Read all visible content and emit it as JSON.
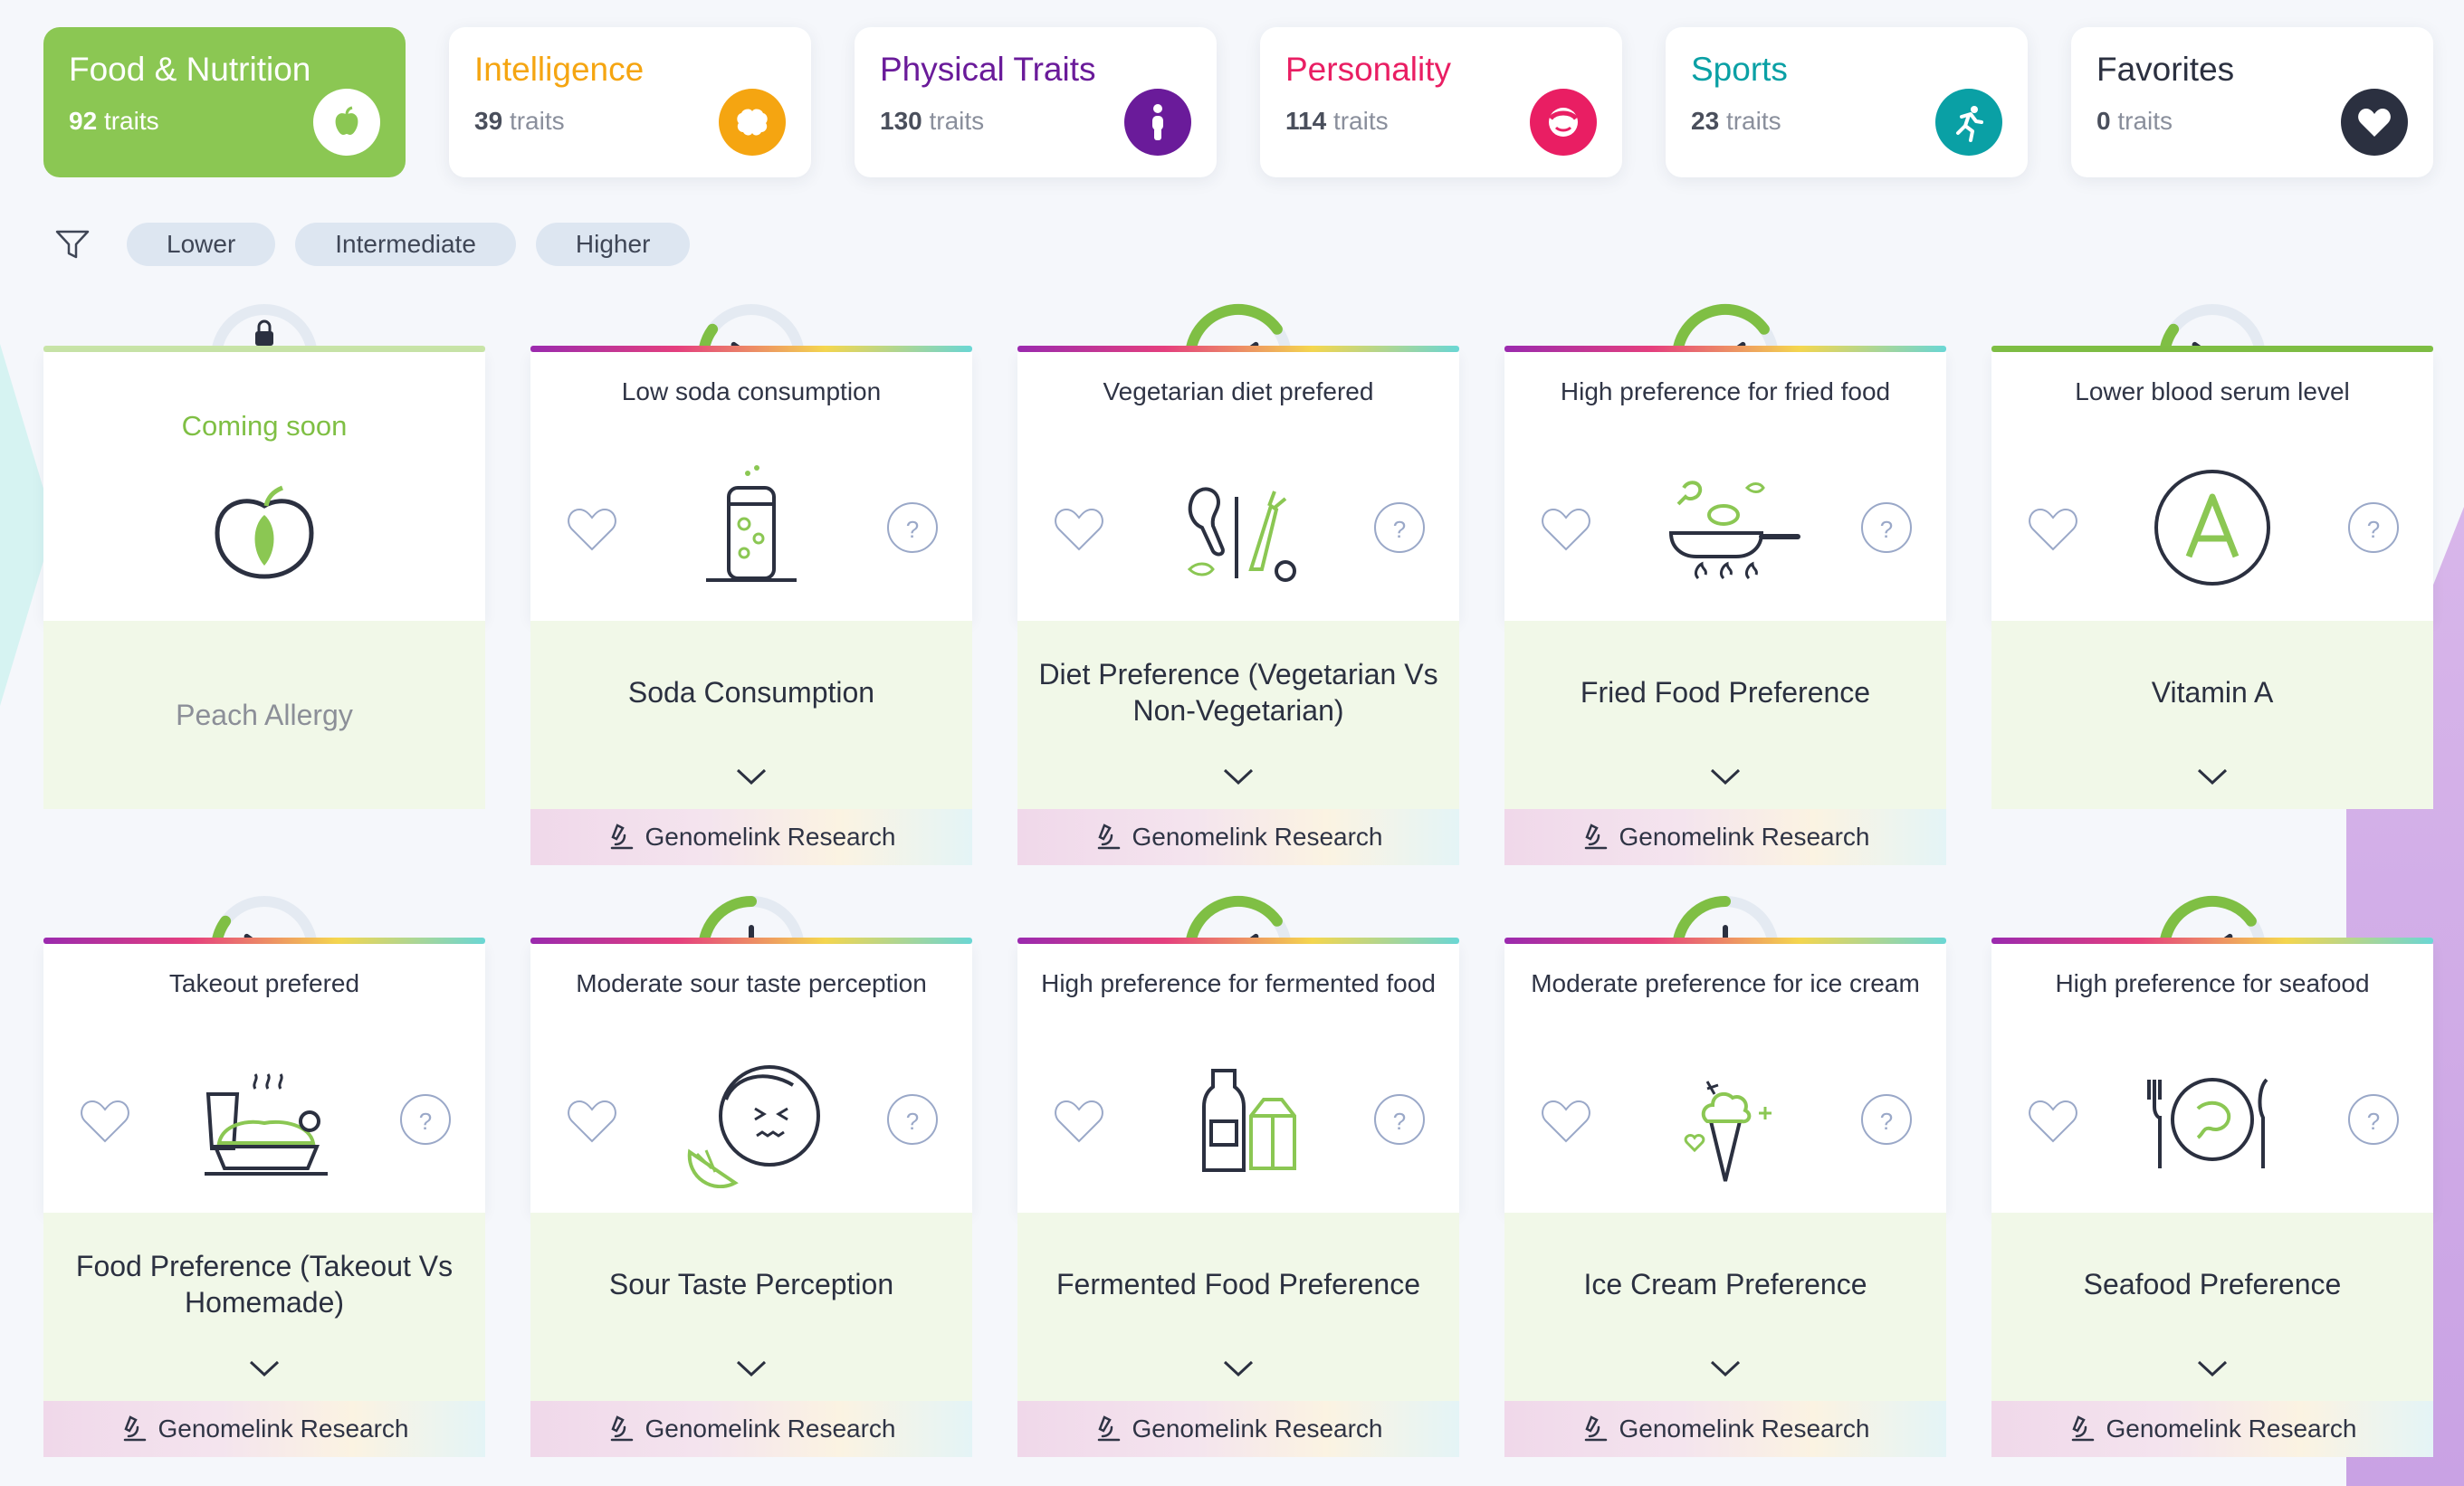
{
  "tabs": [
    {
      "title": "Food & Nutrition",
      "count": "92",
      "suffix": "traits",
      "color": "#ffffff",
      "icon": "apple-icon",
      "active": true
    },
    {
      "title": "Intelligence",
      "count": "39",
      "suffix": "traits",
      "color": "#f5a511",
      "icon": "brain-icon"
    },
    {
      "title": "Physical Traits",
      "count": "130",
      "suffix": "traits",
      "color": "#6a1b9a",
      "icon": "person-icon"
    },
    {
      "title": "Personality",
      "count": "114",
      "suffix": "traits",
      "color": "#e91e63",
      "icon": "face-icon"
    },
    {
      "title": "Sports",
      "count": "23",
      "suffix": "traits",
      "color": "#0aa0a5",
      "icon": "runner-icon"
    },
    {
      "title": "Favorites",
      "count": "0",
      "suffix": "traits",
      "color": "#2b3040",
      "icon": "heart-icon"
    }
  ],
  "filters": [
    "Lower",
    "Intermediate",
    "Higher"
  ],
  "research_label": "Genomelink Research",
  "cards": [
    {
      "label": "Coming soon",
      "name": "Peach Allergy",
      "locked": true,
      "icon": "peach-icon"
    },
    {
      "label": "Low soda consumption",
      "name": "Soda Consumption",
      "level": 0.2,
      "icon": "soda-can-icon"
    },
    {
      "label": "Vegetarian diet prefered",
      "name": "Diet Preference (Vegetarian Vs Non-Vegetarian)",
      "level": 0.8,
      "icon": "vegetables-icon"
    },
    {
      "label": "High preference for fried food",
      "name": "Fried Food Preference",
      "level": 0.8,
      "icon": "frying-pan-icon"
    },
    {
      "label": "Lower blood serum level",
      "name": "Vitamin A",
      "level": 0.2,
      "icon": "vitamin-a-icon"
    },
    {
      "label": "Takeout prefered",
      "name": "Food Preference (Takeout Vs Homemade)",
      "level": 0.2,
      "icon": "takeout-icon"
    },
    {
      "label": "Moderate sour taste perception",
      "name": "Sour Taste Perception",
      "level": 0.5,
      "icon": "sour-face-icon"
    },
    {
      "label": "High preference for fermented food",
      "name": "Fermented Food Preference",
      "level": 0.8,
      "icon": "milk-bottle-icon"
    },
    {
      "label": "Moderate preference for ice cream",
      "name": "Ice Cream Preference",
      "level": 0.5,
      "icon": "ice-cream-icon"
    },
    {
      "label": "High preference for seafood",
      "name": "Seafood Preference",
      "level": 0.8,
      "icon": "seafood-plate-icon"
    }
  ],
  "colors": {
    "accent": "#8bc753",
    "gauge_fill": "#7fbf44",
    "gauge_track": "#e4eaf2"
  }
}
